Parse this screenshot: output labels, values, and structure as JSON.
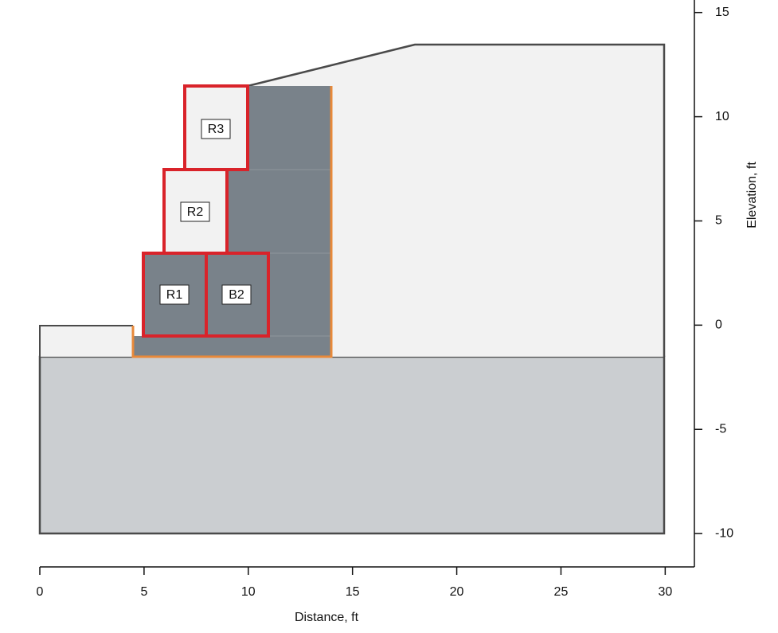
{
  "x_axis": {
    "label": "Distance, ft",
    "xlim": [
      0,
      31.4
    ],
    "xticks": [
      0,
      5,
      10,
      15,
      20,
      25,
      30
    ]
  },
  "y_axis": {
    "label": "Elevation, ft",
    "ylim": [
      -11.6,
      15.6
    ],
    "yticks": [
      -10,
      -5,
      0,
      5,
      10,
      15
    ]
  },
  "blocks": [
    "R3",
    "R2",
    "R1",
    "B2"
  ]
}
